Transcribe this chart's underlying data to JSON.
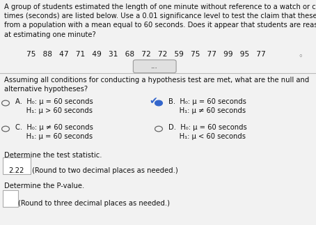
{
  "title_text": "A group of students estimated the length of one minute without reference to a watch or clock, and the\ntimes (seconds) are listed below. Use a 0.01 significance level to test the claim that these times are\nfrom a population with a mean equal to 60 seconds. Does it appear that students are reasonably good\nat estimating one minute?",
  "data_row": "75   88   47   71   49   31   68   72   72   59   75   77   99   95   77",
  "ellipsis_text": "...",
  "section1_text": "Assuming all conditions for conducting a hypothesis test are met, what are the null and\nalternative hypotheses?",
  "optA_line1": "A.  H₀: μ = 60 seconds",
  "optA_line2": "     H₁: μ > 60 seconds",
  "optB_line1": "B.  H₀: μ = 60 seconds",
  "optB_line2": "     H₁: μ ≠ 60 seconds",
  "optC_line1": "C.  H₀: μ ≠ 60 seconds",
  "optC_line2": "     H₁: μ = 60 seconds",
  "optD_line1": "D.  H₀: μ = 60 seconds",
  "optD_line2": "     H₁: μ < 60 seconds",
  "stat_label": "Determine the test statistic.",
  "stat_value": "2.22",
  "stat_note": " (Round to two decimal places as needed.)",
  "pval_label": "Determine the P-value.",
  "pval_note": "(Round to three decimal places as needed.)",
  "bg_color": "#f2f2f2",
  "white_bg": "#ffffff",
  "text_color": "#111111",
  "font_size": 7.2,
  "separator_color": "#bbbbbb",
  "radio_unsel_color": "#666666",
  "radio_sel_color": "#3366cc",
  "check_color": "#3366cc"
}
